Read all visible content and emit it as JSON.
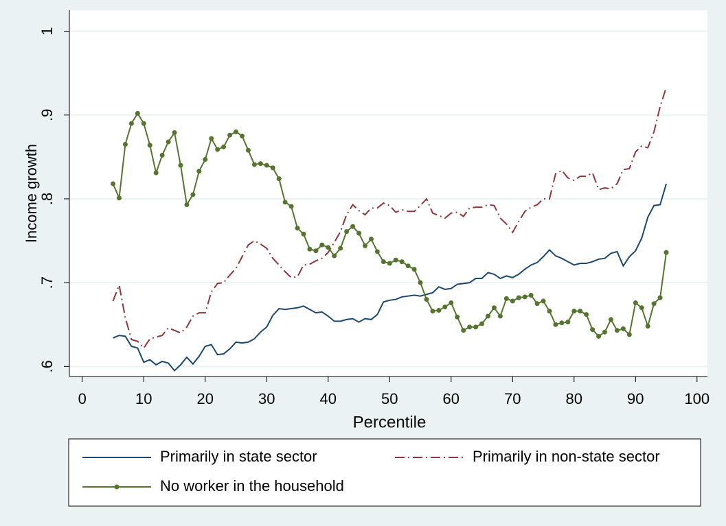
{
  "chart_data": {
    "type": "line",
    "xlabel": "Percentile",
    "ylabel": "Income growth",
    "xlim": [
      -2.1,
      101.7
    ],
    "ylim": [
      0.588,
      1.025
    ],
    "xticks": [
      0,
      10,
      20,
      30,
      40,
      50,
      60,
      70,
      80,
      90,
      100
    ],
    "yticks": [
      {
        "value": 0.6,
        "label": ".6"
      },
      {
        "value": 0.7,
        "label": ".7"
      },
      {
        "value": 0.8,
        "label": ".8"
      },
      {
        "value": 0.9,
        "label": ".9"
      },
      1
    ],
    "grid": true,
    "x": [
      5,
      6,
      7,
      8,
      9,
      10,
      11,
      12,
      13,
      14,
      15,
      16,
      17,
      18,
      19,
      20,
      21,
      22,
      23,
      24,
      25,
      26,
      27,
      28,
      29,
      30,
      31,
      32,
      33,
      34,
      35,
      36,
      37,
      38,
      39,
      40,
      41,
      42,
      43,
      44,
      45,
      46,
      47,
      48,
      49,
      50,
      51,
      52,
      53,
      54,
      55,
      56,
      57,
      58,
      59,
      60,
      61,
      62,
      63,
      64,
      65,
      66,
      67,
      68,
      69,
      70,
      71,
      72,
      73,
      74,
      75,
      76,
      77,
      78,
      79,
      80,
      81,
      82,
      83,
      84,
      85,
      86,
      87,
      88,
      89,
      90,
      91,
      92,
      93,
      94,
      95
    ],
    "series": [
      {
        "name": "Primarily in state sector",
        "color": "#1a476f",
        "style": "solid",
        "markers": false,
        "values": [
          0.634,
          0.637,
          0.636,
          0.624,
          0.622,
          0.605,
          0.608,
          0.602,
          0.606,
          0.604,
          0.595,
          0.602,
          0.611,
          0.603,
          0.612,
          0.624,
          0.626,
          0.614,
          0.615,
          0.621,
          0.629,
          0.628,
          0.629,
          0.633,
          0.641,
          0.647,
          0.661,
          0.669,
          0.668,
          0.669,
          0.67,
          0.672,
          0.668,
          0.664,
          0.665,
          0.66,
          0.654,
          0.654,
          0.656,
          0.657,
          0.653,
          0.657,
          0.656,
          0.662,
          0.677,
          0.679,
          0.68,
          0.683,
          0.684,
          0.685,
          0.684,
          0.686,
          0.688,
          0.695,
          0.692,
          0.693,
          0.698,
          0.699,
          0.7,
          0.705,
          0.705,
          0.712,
          0.71,
          0.705,
          0.708,
          0.706,
          0.71,
          0.716,
          0.721,
          0.724,
          0.731,
          0.739,
          0.732,
          0.729,
          0.725,
          0.721,
          0.723,
          0.723,
          0.725,
          0.728,
          0.729,
          0.735,
          0.737,
          0.72,
          0.731,
          0.738,
          0.753,
          0.778,
          0.792,
          0.793,
          0.818
        ]
      },
      {
        "name": "Primarily in non-state sector",
        "color": "#90353b",
        "style": "dashdot",
        "markers": false,
        "values": [
          0.678,
          0.697,
          0.658,
          0.632,
          0.63,
          0.622,
          0.633,
          0.635,
          0.637,
          0.646,
          0.643,
          0.64,
          0.647,
          0.66,
          0.664,
          0.664,
          0.689,
          0.699,
          0.7,
          0.709,
          0.717,
          0.731,
          0.745,
          0.75,
          0.746,
          0.741,
          0.729,
          0.721,
          0.713,
          0.706,
          0.707,
          0.721,
          0.722,
          0.726,
          0.729,
          0.736,
          0.748,
          0.761,
          0.781,
          0.793,
          0.786,
          0.781,
          0.789,
          0.789,
          0.795,
          0.792,
          0.784,
          0.787,
          0.785,
          0.785,
          0.792,
          0.8,
          0.783,
          0.78,
          0.777,
          0.783,
          0.784,
          0.779,
          0.789,
          0.79,
          0.79,
          0.793,
          0.792,
          0.777,
          0.77,
          0.76,
          0.773,
          0.785,
          0.79,
          0.793,
          0.8,
          0.8,
          0.83,
          0.834,
          0.825,
          0.822,
          0.827,
          0.827,
          0.831,
          0.811,
          0.813,
          0.812,
          0.818,
          0.835,
          0.836,
          0.856,
          0.863,
          0.861,
          0.88,
          0.91,
          0.933
        ]
      },
      {
        "name": "No worker in the household",
        "color": "#55752f",
        "style": "solid",
        "markers": true,
        "values": [
          0.818,
          0.801,
          0.865,
          0.89,
          0.902,
          0.89,
          0.864,
          0.831,
          0.852,
          0.868,
          0.879,
          0.84,
          0.793,
          0.805,
          0.833,
          0.847,
          0.872,
          0.859,
          0.862,
          0.876,
          0.88,
          0.875,
          0.858,
          0.841,
          0.842,
          0.84,
          0.837,
          0.824,
          0.796,
          0.791,
          0.765,
          0.758,
          0.74,
          0.738,
          0.745,
          0.742,
          0.732,
          0.741,
          0.761,
          0.767,
          0.759,
          0.744,
          0.752,
          0.737,
          0.725,
          0.723,
          0.727,
          0.725,
          0.72,
          0.716,
          0.7,
          0.68,
          0.666,
          0.667,
          0.671,
          0.676,
          0.659,
          0.643,
          0.647,
          0.647,
          0.651,
          0.66,
          0.67,
          0.66,
          0.681,
          0.678,
          0.682,
          0.683,
          0.685,
          0.675,
          0.678,
          0.666,
          0.65,
          0.652,
          0.653,
          0.666,
          0.666,
          0.662,
          0.644,
          0.636,
          0.641,
          0.656,
          0.643,
          0.645,
          0.638,
          0.676,
          0.67,
          0.648,
          0.675,
          0.682,
          0.736
        ]
      }
    ]
  }
}
